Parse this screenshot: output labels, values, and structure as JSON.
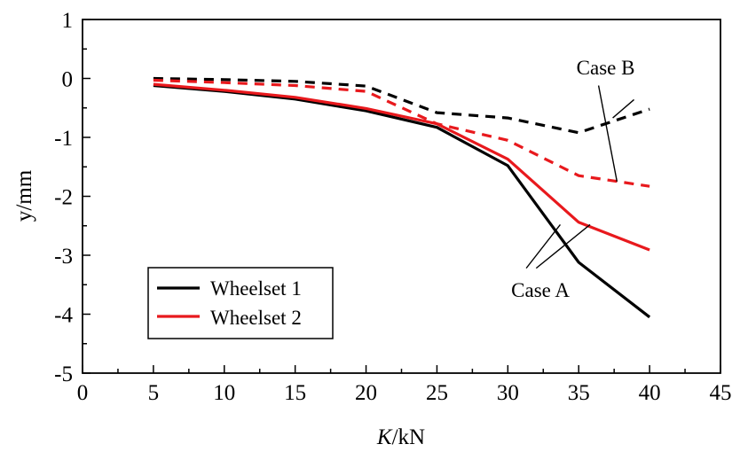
{
  "chart_data": {
    "type": "line",
    "xlabel_italic": "K",
    "xlabel_rest": "/kN",
    "ylabel": "y/mm",
    "xlim": [
      0,
      45
    ],
    "ylim": [
      -5,
      1
    ],
    "xticks": [
      0,
      5,
      10,
      15,
      20,
      25,
      30,
      35,
      40,
      45
    ],
    "yticks": [
      1,
      0,
      -1,
      -2,
      -3,
      -4,
      -5
    ],
    "x": [
      5,
      10,
      15,
      20,
      25,
      30,
      35,
      40
    ],
    "series": [
      {
        "name": "Wheelset 1",
        "case": "Case A",
        "color": "#000000",
        "dashed": false,
        "values": [
          -0.12,
          -0.22,
          -0.35,
          -0.55,
          -0.83,
          -1.48,
          -3.12,
          -4.05
        ]
      },
      {
        "name": "Wheelset 2",
        "case": "Case A",
        "color": "#e8191d",
        "dashed": false,
        "values": [
          -0.1,
          -0.2,
          -0.32,
          -0.51,
          -0.77,
          -1.37,
          -2.44,
          -2.91
        ]
      },
      {
        "name": "Wheelset 1",
        "case": "Case B",
        "color": "#000000",
        "dashed": true,
        "values": [
          0.0,
          -0.02,
          -0.05,
          -0.13,
          -0.58,
          -0.67,
          -0.92,
          -0.52
        ]
      },
      {
        "name": "Wheelset 2",
        "case": "Case B",
        "color": "#e8191d",
        "dashed": true,
        "values": [
          -0.03,
          -0.07,
          -0.12,
          -0.22,
          -0.77,
          -1.05,
          -1.65,
          -1.83
        ]
      }
    ],
    "legend": [
      {
        "label": "Wheelset 1",
        "color": "#000000"
      },
      {
        "label": "Wheelset 2",
        "color": "#e8191d"
      }
    ],
    "annotations": [
      {
        "text": "Case A",
        "text_at": [
          32.3,
          -3.71
        ],
        "pointers": [
          [
            33.7,
            -2.48
          ],
          [
            35.8,
            -2.48
          ]
        ],
        "origins": [
          [
            31.3,
            -3.22
          ],
          [
            32.0,
            -3.22
          ]
        ]
      },
      {
        "text": "Case B",
        "text_at": [
          36.9,
          0.07
        ],
        "pointers": [
          [
            36.4,
            -0.12
          ],
          [
            38.9,
            -0.36
          ]
        ],
        "origins": [
          [
            37.7,
            -1.75
          ],
          [
            37.4,
            -0.67
          ]
        ]
      }
    ],
    "grid": false,
    "legend_position": "bottom-left"
  }
}
